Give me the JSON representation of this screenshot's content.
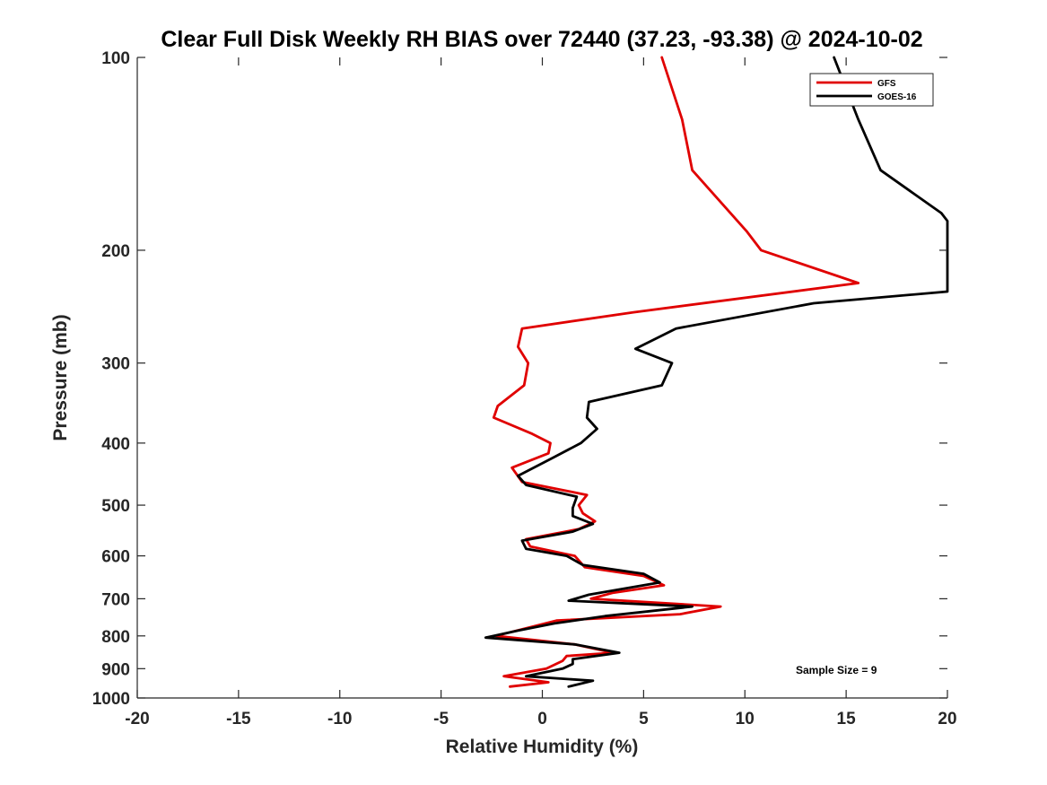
{
  "chart_data": {
    "type": "line",
    "title": "Clear Full Disk Weekly RH BIAS over 72440 (37.23, -93.38) @ 2024-10-02",
    "xlabel": "Relative Humidity (%)",
    "ylabel": "Pressure (mb)",
    "xlim": [
      -20,
      20
    ],
    "ylim": [
      100,
      1000
    ],
    "y_scale": "log",
    "y_reversed": true,
    "xticks": [
      -20,
      -15,
      -10,
      -5,
      0,
      5,
      10,
      15,
      20
    ],
    "yticks": [
      100,
      200,
      300,
      400,
      500,
      600,
      700,
      800,
      900,
      1000
    ],
    "grid": false,
    "legend_position": "top-right",
    "annotation": "Sample Size = 9",
    "series": [
      {
        "name": "GFS",
        "color": "#e00000",
        "points": [
          [
            5.9,
            100
          ],
          [
            6.9,
            125
          ],
          [
            7.4,
            150
          ],
          [
            10.1,
            187
          ],
          [
            10.8,
            200
          ],
          [
            15.6,
            225
          ],
          [
            4.5,
            250
          ],
          [
            -1.0,
            265
          ],
          [
            -1.2,
            283
          ],
          [
            -0.7,
            300
          ],
          [
            -0.9,
            325
          ],
          [
            -2.2,
            350
          ],
          [
            -2.4,
            365
          ],
          [
            -0.5,
            387
          ],
          [
            0.4,
            400
          ],
          [
            0.3,
            415
          ],
          [
            -1.5,
            437
          ],
          [
            -1.0,
            460
          ],
          [
            2.2,
            482
          ],
          [
            1.8,
            500
          ],
          [
            2.0,
            515
          ],
          [
            2.6,
            530
          ],
          [
            1.8,
            545
          ],
          [
            -0.8,
            565
          ],
          [
            -0.6,
            580
          ],
          [
            1.6,
            600
          ],
          [
            2.1,
            625
          ],
          [
            5.0,
            645
          ],
          [
            6.0,
            667
          ],
          [
            3.5,
            685
          ],
          [
            2.4,
            700
          ],
          [
            8.8,
            720
          ],
          [
            6.8,
            740
          ],
          [
            0.7,
            757
          ],
          [
            -2.3,
            800
          ],
          [
            1.6,
            825
          ],
          [
            3.5,
            850
          ],
          [
            1.2,
            860
          ],
          [
            1.0,
            875
          ],
          [
            0.2,
            900
          ],
          [
            -1.9,
            925
          ],
          [
            0.3,
            945
          ],
          [
            -1.6,
            960
          ]
        ]
      },
      {
        "name": "GOES-16",
        "color": "#000000",
        "points": [
          [
            14.4,
            100
          ],
          [
            15.6,
            125
          ],
          [
            16.7,
            150
          ],
          [
            19.7,
            175
          ],
          [
            20.0,
            180
          ],
          [
            20.0,
            232
          ],
          [
            13.4,
            242
          ],
          [
            6.6,
            265
          ],
          [
            4.6,
            285
          ],
          [
            6.4,
            300
          ],
          [
            5.9,
            325
          ],
          [
            2.3,
            345
          ],
          [
            2.2,
            365
          ],
          [
            2.7,
            380
          ],
          [
            1.9,
            400
          ],
          [
            0.5,
            422
          ],
          [
            -1.2,
            450
          ],
          [
            -0.8,
            465
          ],
          [
            1.7,
            485
          ],
          [
            1.5,
            505
          ],
          [
            1.5,
            520
          ],
          [
            2.5,
            535
          ],
          [
            1.5,
            550
          ],
          [
            -1.0,
            568
          ],
          [
            -0.8,
            585
          ],
          [
            1.2,
            600
          ],
          [
            2.0,
            620
          ],
          [
            5.0,
            640
          ],
          [
            5.8,
            660
          ],
          [
            2.3,
            690
          ],
          [
            1.3,
            705
          ],
          [
            7.4,
            720
          ],
          [
            3.1,
            745
          ],
          [
            0.6,
            765
          ],
          [
            -1.2,
            785
          ],
          [
            -2.8,
            805
          ],
          [
            1.6,
            825
          ],
          [
            3.8,
            850
          ],
          [
            1.5,
            870
          ],
          [
            1.5,
            885
          ],
          [
            1.0,
            900
          ],
          [
            -0.8,
            925
          ],
          [
            2.5,
            940
          ],
          [
            1.3,
            960
          ]
        ]
      }
    ]
  }
}
